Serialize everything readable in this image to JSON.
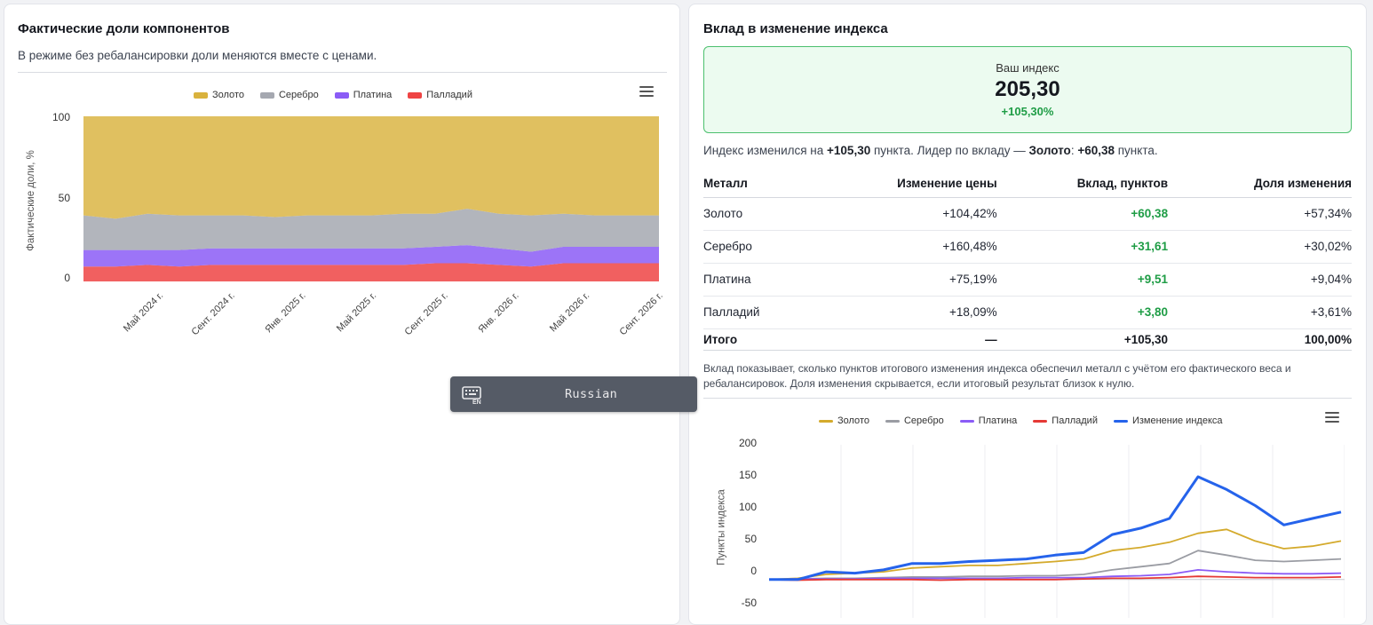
{
  "left_panel": {
    "title": "Фактические доли компонентов",
    "subtitle": "В режиме без ребалансировки доли меняются вместе с ценами.",
    "legend": [
      {
        "name": "Золото",
        "color": "#d9b23d"
      },
      {
        "name": "Серебро",
        "color": "#a5a8b0"
      },
      {
        "name": "Платина",
        "color": "#8b5cf6"
      },
      {
        "name": "Палладий",
        "color": "#ef4444"
      }
    ],
    "menu_icon": "hamburger-icon"
  },
  "right_panel": {
    "title": "Вклад в изменение индекса",
    "index_box": {
      "label": "Ваш индекс",
      "value": "205,30",
      "change": "+105,30%"
    },
    "summary": {
      "prefix": "Индекс изменился на ",
      "change": "+105,30",
      "middle": " пункта. Лидер по вкладу — ",
      "leader": "Золото",
      "colon": ": ",
      "leader_value": "+60,38",
      "suffix": " пункта."
    },
    "table": {
      "headers": [
        "Металл",
        "Изменение цены",
        "Вклад, пунктов",
        "Доля изменения"
      ],
      "rows": [
        [
          "Золото",
          "+104,42%",
          "+60,38",
          "+57,34%"
        ],
        [
          "Серебро",
          "+160,48%",
          "+31,61",
          "+30,02%"
        ],
        [
          "Платина",
          "+75,19%",
          "+9,51",
          "+9,04%"
        ],
        [
          "Палладий",
          "+18,09%",
          "+3,80",
          "+3,61%"
        ]
      ],
      "total": [
        "Итого",
        "—",
        "+105,30",
        "100,00%"
      ]
    },
    "note": "Вклад показывает, сколько пунктов итогового изменения индекса обеспечил металл с учётом его фактического веса и ребалансировок. Доля изменения скрывается, если итоговый результат близок к нулю.",
    "legend": [
      {
        "name": "Золото",
        "color": "#d4aa2c"
      },
      {
        "name": "Серебро",
        "color": "#9a9ca3"
      },
      {
        "name": "Платина",
        "color": "#8b5cf6"
      },
      {
        "name": "Палладий",
        "color": "#e53935"
      },
      {
        "name": "Изменение индекса",
        "color": "#2563eb"
      }
    ],
    "menu_icon": "hamburger-icon"
  },
  "keyboard_tooltip": {
    "icon": "keyboard-en-icon",
    "label": "Russian"
  },
  "chart_data": [
    {
      "type": "area",
      "stacked": true,
      "ylabel": "Фактические доли, %",
      "ylim": [
        0,
        100
      ],
      "yticks": [
        "100",
        "50",
        "0"
      ],
      "x_ticks": [
        "Май 2024 г.",
        "Сент. 2024 г.",
        "Янв. 2025 г.",
        "Май 2025 г.",
        "Сент. 2025 г.",
        "Янв. 2026 г.",
        "Май 2026 г.",
        "Сент. 2026 г."
      ],
      "x": [
        "2024-01",
        "2024-03",
        "2024-05",
        "2024-07",
        "2024-09",
        "2024-11",
        "2025-01",
        "2025-03",
        "2025-05",
        "2025-07",
        "2025-09",
        "2025-11",
        "2026-01",
        "2026-02",
        "2026-03",
        "2026-05",
        "2026-07",
        "2026-09",
        "2026-10"
      ],
      "series": [
        {
          "name": "Палладий",
          "values": [
            9,
            9,
            10,
            9,
            10,
            10,
            10,
            10,
            10,
            10,
            10,
            11,
            11,
            10,
            9,
            11,
            11,
            11,
            11
          ]
        },
        {
          "name": "Платина",
          "values": [
            10,
            10,
            9,
            10,
            10,
            10,
            10,
            10,
            10,
            10,
            10,
            10,
            11,
            10,
            9,
            10,
            10,
            10,
            10
          ]
        },
        {
          "name": "Серебро",
          "values": [
            21,
            19,
            22,
            21,
            20,
            20,
            19,
            20,
            20,
            20,
            21,
            20,
            22,
            21,
            22,
            20,
            19,
            19,
            19
          ]
        },
        {
          "name": "Золото",
          "values": [
            60,
            62,
            59,
            60,
            60,
            60,
            61,
            60,
            60,
            60,
            59,
            59,
            56,
            59,
            60,
            59,
            60,
            60,
            60
          ]
        }
      ]
    },
    {
      "type": "line",
      "ylabel": "Пункты индекса",
      "ylim": [
        -50,
        200
      ],
      "yticks": [
        "200",
        "150",
        "100",
        "50",
        "0",
        "-50"
      ],
      "x": [
        0,
        5,
        10,
        15,
        20,
        25,
        30,
        35,
        40,
        45,
        50,
        55,
        60,
        65,
        70,
        75,
        80,
        85,
        90,
        95,
        100
      ],
      "series": [
        {
          "name": "Золото",
          "values": [
            0,
            2,
            8,
            10,
            12,
            18,
            20,
            22,
            22,
            25,
            28,
            32,
            45,
            50,
            58,
            72,
            78,
            60,
            48,
            52,
            60
          ]
        },
        {
          "name": "Серебро",
          "values": [
            0,
            1,
            2,
            2,
            3,
            4,
            4,
            5,
            5,
            6,
            6,
            8,
            15,
            20,
            25,
            45,
            38,
            30,
            28,
            30,
            32
          ]
        },
        {
          "name": "Платина",
          "values": [
            0,
            1,
            1,
            1,
            2,
            2,
            2,
            2,
            2,
            3,
            3,
            3,
            5,
            6,
            8,
            15,
            12,
            10,
            9,
            9,
            10
          ]
        },
        {
          "name": "Палладий",
          "values": [
            0,
            -1,
            0,
            0,
            0,
            0,
            -1,
            0,
            0,
            0,
            0,
            1,
            2,
            2,
            3,
            5,
            4,
            3,
            3,
            3,
            4
          ]
        },
        {
          "name": "Изменение индекса",
          "values": [
            0,
            0,
            12,
            10,
            15,
            25,
            25,
            28,
            30,
            32,
            38,
            42,
            70,
            80,
            95,
            160,
            140,
            115,
            85,
            95,
            105
          ]
        }
      ]
    }
  ]
}
